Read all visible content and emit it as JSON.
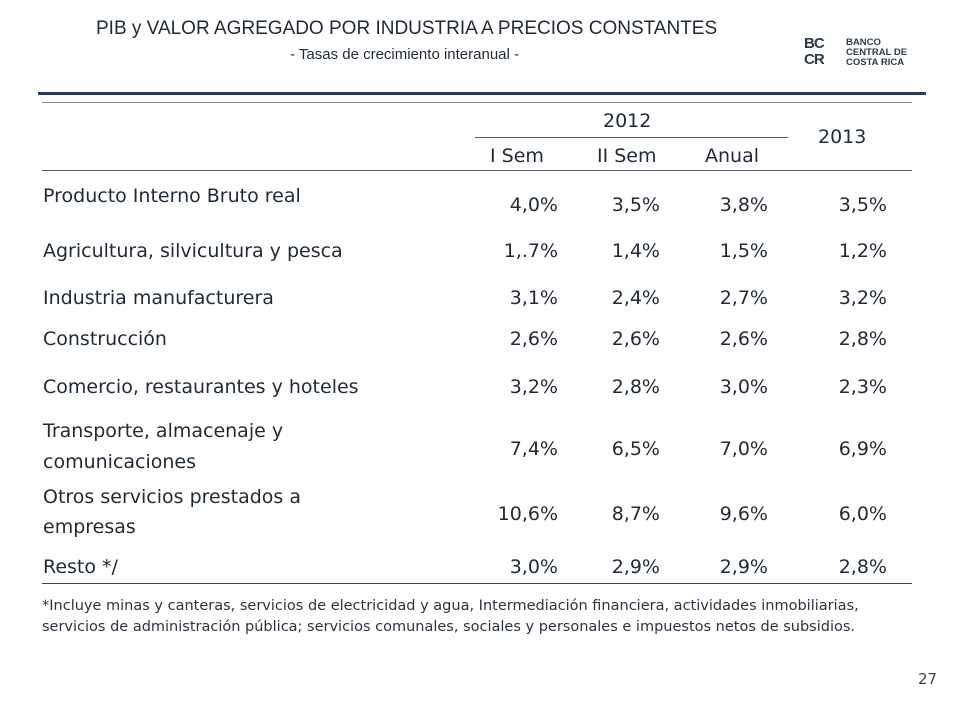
{
  "header": {
    "title": "PIB y VALOR AGREGADO POR INDUSTRIA A PRECIOS CONSTANTES",
    "subtitle": "- Tasas de crecimiento interanual -",
    "logo_mark": "BC CR",
    "logo_text": [
      "BANCO",
      "CENTRAL DE",
      "COSTA RICA"
    ]
  },
  "table": {
    "year_2012": "2012",
    "year_2013": "2013",
    "sub_headers": [
      "I Sem",
      "II Sem",
      "Anual"
    ],
    "rows": [
      {
        "label": "Producto Interno Bruto real",
        "i_sem": "4,0%",
        "ii_sem": "3,5%",
        "anual": "3,8%",
        "y2013": "3,5%"
      },
      {
        "label": "Agricultura, silvicultura y pesca",
        "i_sem": "1,.7%",
        "ii_sem": "1,4%",
        "anual": "1,5%",
        "y2013": "1,2%"
      },
      {
        "label": "Industria manufacturera",
        "i_sem": "3,1%",
        "ii_sem": "2,4%",
        "anual": "2,7%",
        "y2013": "3,2%"
      },
      {
        "label": "Construcción",
        "i_sem": "2,6%",
        "ii_sem": "2,6%",
        "anual": "2,6%",
        "y2013": "2,8%"
      },
      {
        "label": "Comercio, restaurantes y hoteles",
        "i_sem": "3,2%",
        "ii_sem": "2,8%",
        "anual": "3,0%",
        "y2013": "2,3%"
      },
      {
        "label_line1": "Transporte, almacenaje y",
        "label_line2": "comunicaciones",
        "i_sem": "7,4%",
        "ii_sem": "6,5%",
        "anual": "7,0%",
        "y2013": "6,9%"
      },
      {
        "label_line1": "Otros servicios prestados a",
        "label_line2": "empresas",
        "i_sem": "10,6%",
        "ii_sem": "8,7%",
        "anual": "9,6%",
        "y2013": "6,0%"
      },
      {
        "label": "Resto */",
        "i_sem": "3,0%",
        "ii_sem": "2,9%",
        "anual": "2,9%",
        "y2013": "2,8%"
      }
    ]
  },
  "footnote": {
    "line1": "*Incluye minas y canteras,  servicios de electricidad y agua, Intermediación financiera, actividades inmobiliarias,",
    "line2": "servicios de administración pública; servicios comunales, sociales y personales e impuestos netos de subsidios."
  },
  "page_number": "27"
}
